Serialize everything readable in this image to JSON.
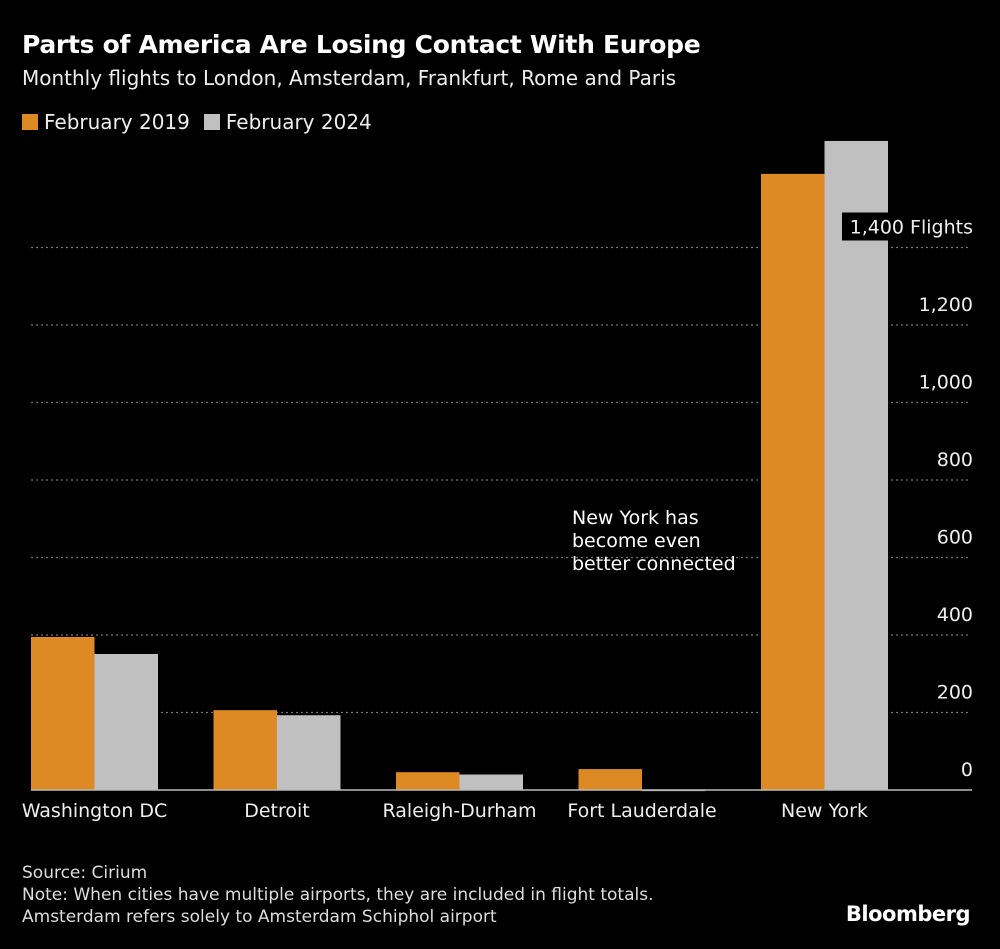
{
  "title": "Parts of America Are Losing Contact With Europe",
  "subtitle": "Monthly flights to London, Amsterdam, Frankfurt, Rome and Paris",
  "source": "Source: Cirium",
  "note1": "Note: When cities have multiple airports, they are included in flight totals.",
  "note2": "Amsterdam refers solely to Amsterdam Schiphol airport",
  "logo": "Bloomberg",
  "chart_data": {
    "type": "bar",
    "title": "Parts of America Are Losing Contact With Europe",
    "subtitle": "Monthly flights to London, Amsterdam, Frankfurt, Rome and Paris",
    "categories": [
      "Washington DC",
      "Detroit",
      "Raleigh-Durham",
      "Fort Lauderdale",
      "New York"
    ],
    "series": [
      {
        "name": "February 2019",
        "color": "#dd8a24",
        "values": [
          395,
          206,
          46,
          54,
          1590
        ]
      },
      {
        "name": "February 2024",
        "color": "#c0c0c0",
        "values": [
          351,
          193,
          40,
          1,
          1675
        ]
      }
    ],
    "ylim": [
      0,
      1700
    ],
    "yticks": [
      0,
      200,
      400,
      600,
      800,
      1000,
      1200,
      1400
    ],
    "ytick_labels": [
      "0",
      "200",
      "400",
      "600",
      "800",
      "1,000",
      "1,200",
      "1,400 Flights"
    ],
    "grid": true,
    "axis_position": "right",
    "legend": "top-left",
    "annotation": [
      "New York has",
      "become even",
      "better connected"
    ]
  }
}
